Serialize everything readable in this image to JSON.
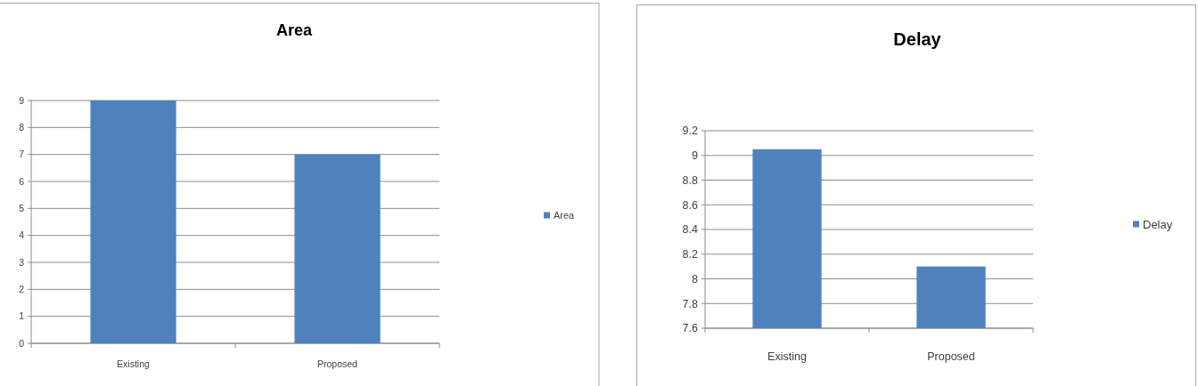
{
  "chart_data": [
    {
      "type": "bar",
      "title": "Area",
      "categories": [
        "Existing",
        "Proposed"
      ],
      "series": [
        {
          "name": "Area",
          "color": "#4f81bd",
          "values": [
            9,
            7
          ]
        }
      ],
      "ylim": [
        0,
        9
      ],
      "yticks": [
        0,
        1,
        2,
        3,
        4,
        5,
        6,
        7,
        8,
        9
      ],
      "grid": "y",
      "legend": "right"
    },
    {
      "type": "bar",
      "title": "Delay",
      "categories": [
        "Existing",
        "Proposed"
      ],
      "series": [
        {
          "name": "Delay",
          "color": "#4f81bd",
          "values": [
            9.05,
            8.1
          ]
        }
      ],
      "ylim": [
        7.6,
        9.2
      ],
      "yticks": [
        7.6,
        7.8,
        8,
        8.2,
        8.4,
        8.6,
        8.8,
        9,
        9.2
      ],
      "grid": "y",
      "legend": "right"
    }
  ]
}
